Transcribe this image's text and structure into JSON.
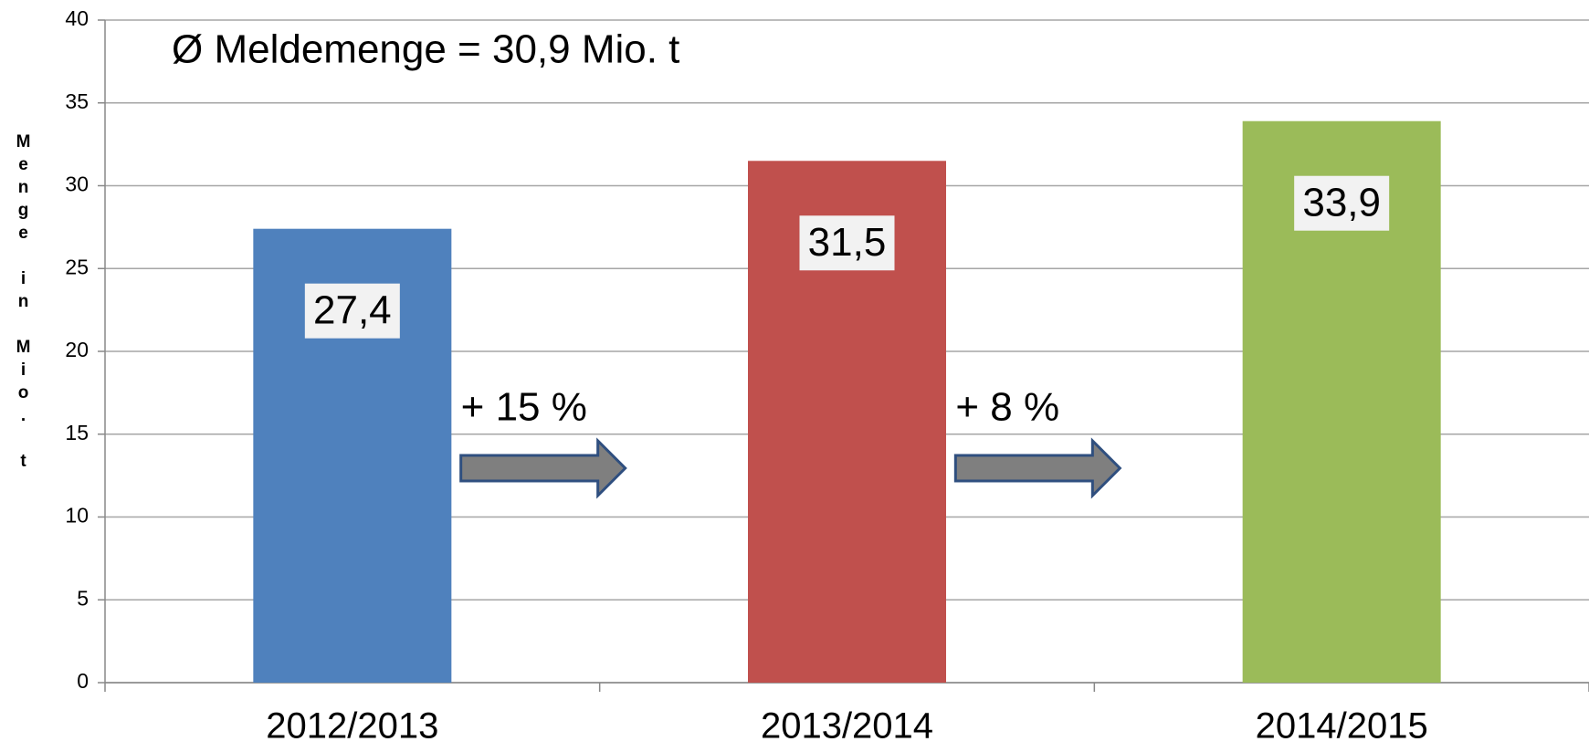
{
  "chart_data": {
    "type": "bar",
    "y_label": "Menge in Mio. t",
    "note": "Ø Meldemenge = 30,9 Mio. t",
    "categories": [
      "2012/2013",
      "2013/2014",
      "2014/2015"
    ],
    "values": [
      27.4,
      31.5,
      33.9
    ],
    "value_labels": [
      "27,4",
      "31,5",
      "33,9"
    ],
    "colors": [
      "#4f81bd",
      "#c0504d",
      "#9bbb59"
    ],
    "annotations": [
      "+ 15 %",
      "+ 8 %"
    ],
    "ylim": [
      0,
      40
    ],
    "yticks": [
      0,
      5,
      10,
      15,
      20,
      25,
      30,
      35,
      40
    ],
    "grid": true
  }
}
